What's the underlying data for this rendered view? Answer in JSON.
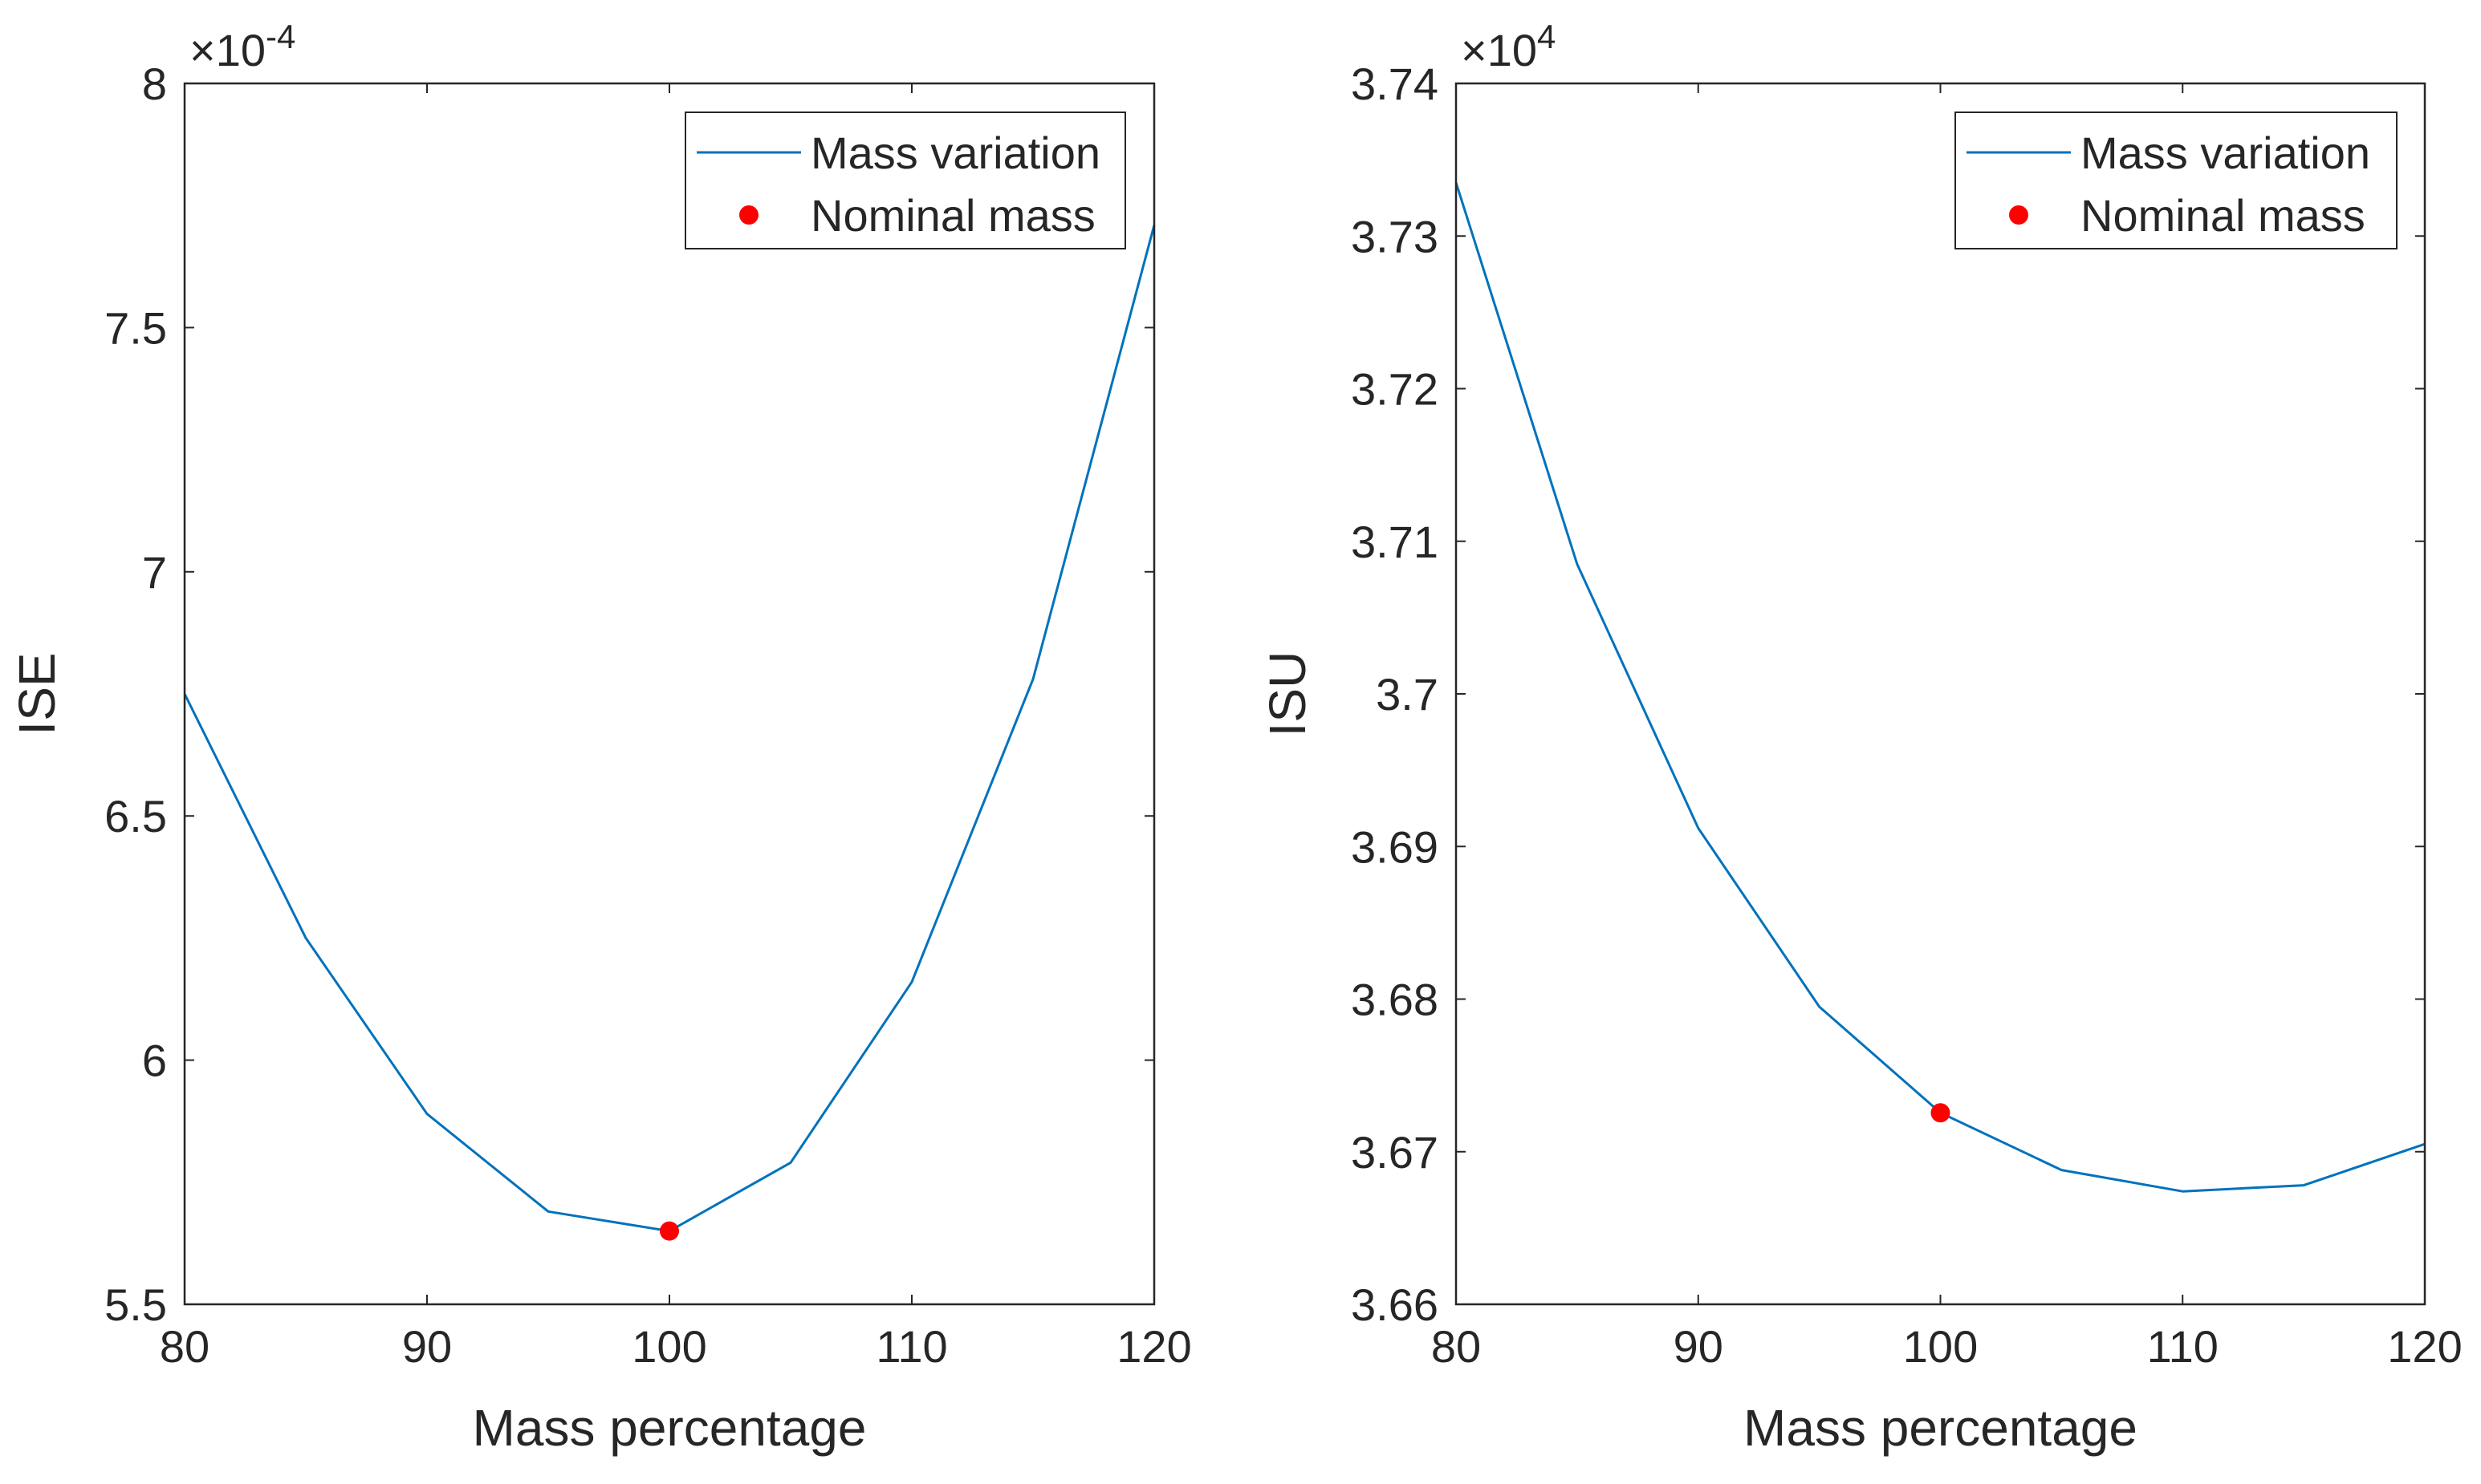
{
  "chart_data": [
    {
      "type": "line",
      "xlabel": "Mass percentage",
      "ylabel": "ISE",
      "exponent_base": "×10",
      "exponent_power": "-4",
      "xlim": [
        80,
        120
      ],
      "ylim": [
        5.5,
        8
      ],
      "xticks": [
        80,
        90,
        100,
        110,
        120
      ],
      "xtick_labels": [
        "80",
        "90",
        "100",
        "110",
        "120"
      ],
      "yticks": [
        5.5,
        6,
        6.5,
        7,
        7.5,
        8
      ],
      "ytick_labels": [
        "5.5",
        "6",
        "6.5",
        "7",
        "7.5",
        "8"
      ],
      "legend_position": "top-right",
      "series": [
        {
          "name": "Mass variation",
          "style": "line",
          "color": "#0072BD",
          "x": [
            80,
            85,
            90,
            95,
            100,
            105,
            110,
            115,
            120
          ],
          "y": [
            6.75,
            6.25,
            5.89,
            5.69,
            5.65,
            5.79,
            6.16,
            6.78,
            7.71
          ]
        },
        {
          "name": "Nominal mass",
          "style": "marker",
          "color": "#FF0000",
          "x": [
            100
          ],
          "y": [
            5.65
          ]
        }
      ]
    },
    {
      "type": "line",
      "xlabel": "Mass percentage",
      "ylabel": "ISU",
      "exponent_base": "×10",
      "exponent_power": "4",
      "xlim": [
        80,
        120
      ],
      "ylim": [
        3.66,
        3.74
      ],
      "xticks": [
        80,
        90,
        100,
        110,
        120
      ],
      "xtick_labels": [
        "80",
        "90",
        "100",
        "110",
        "120"
      ],
      "yticks": [
        3.66,
        3.67,
        3.68,
        3.69,
        3.7,
        3.71,
        3.72,
        3.73,
        3.74
      ],
      "ytick_labels": [
        "3.66",
        "3.67",
        "3.68",
        "3.69",
        "3.7",
        "3.71",
        "3.72",
        "3.73",
        "3.74"
      ],
      "legend_position": "top-right",
      "series": [
        {
          "name": "Mass variation",
          "style": "line",
          "color": "#0072BD",
          "x": [
            80,
            85,
            90,
            95,
            100,
            105,
            110,
            115,
            120
          ],
          "y": [
            3.7335,
            3.7085,
            3.6912,
            3.6795,
            3.67255,
            3.6688,
            3.6674,
            3.6678,
            3.6705
          ]
        },
        {
          "name": "Nominal mass",
          "style": "marker",
          "color": "#FF0000",
          "x": [
            100
          ],
          "y": [
            3.67255
          ]
        }
      ]
    }
  ]
}
